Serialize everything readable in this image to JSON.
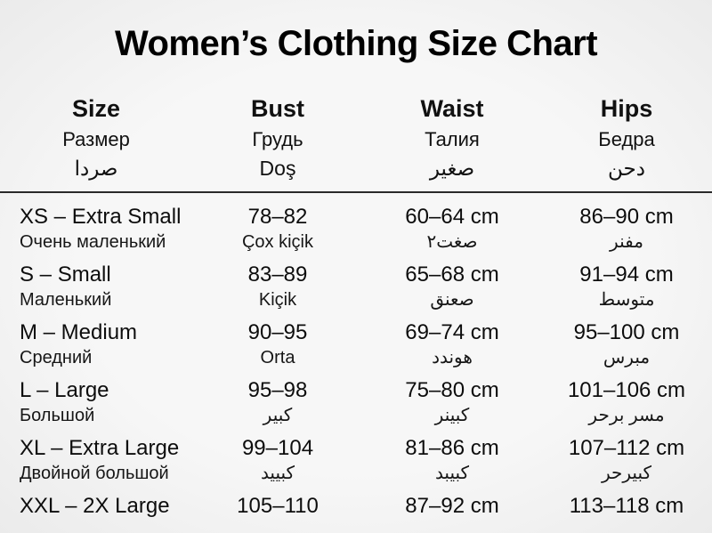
{
  "title": "Women’s Clothing Size Chart",
  "colors": {
    "background": "#f5f5f5",
    "text": "#111111",
    "divider": "#2a2a2a"
  },
  "table": {
    "headers": [
      {
        "en": "Size",
        "ru": "Размер",
        "third": "صردا"
      },
      {
        "en": "Bust",
        "ru": "Грудь",
        "third": "Doş"
      },
      {
        "en": "Waist",
        "ru": "Талия",
        "third": "صغير"
      },
      {
        "en": "Hips",
        "ru": "Бедра",
        "third": "دحن"
      }
    ],
    "rows": [
      {
        "size": "XS – Extra Small",
        "size_sub": "Очень маленький",
        "bust": "78–82",
        "bust_sub": "Çox kiçik",
        "waist": "60–64 cm",
        "waist_sub": "صغت٢",
        "hips": "86–90 cm",
        "hips_sub": "مفنر"
      },
      {
        "size": "S – Small",
        "size_sub": "Маленький",
        "bust": "83–89",
        "bust_sub": "Kiçik",
        "waist": "65–68 cm",
        "waist_sub": "صعنق",
        "hips": "91–94 cm",
        "hips_sub": "متوسط"
      },
      {
        "size": "M – Medium",
        "size_sub": "Средний",
        "bust": "90–95",
        "bust_sub": "Orta",
        "waist": "69–74 cm",
        "waist_sub": "هوندد",
        "hips": "95–100 cm",
        "hips_sub": "مبرس"
      },
      {
        "size": "L – Large",
        "size_sub": "Большой",
        "bust": "95–98",
        "bust_sub": "كبير",
        "waist": "75–80 cm",
        "waist_sub": "كبينر",
        "hips": "101–106 cm",
        "hips_sub": "مسر برحر"
      },
      {
        "size": "XL – Extra Large",
        "size_sub": "Двойной большой",
        "bust": "99–104",
        "bust_sub": "كبييد",
        "waist": "81–86 cm",
        "waist_sub": "كبيبد",
        "hips": "107–112 cm",
        "hips_sub": "كبيرحر"
      },
      {
        "size": "XXL – 2X Large",
        "size_sub": "",
        "bust": "105–110",
        "bust_sub": "",
        "waist": "87–92 cm",
        "waist_sub": "",
        "hips": "113–118 cm",
        "hips_sub": ""
      }
    ]
  },
  "chart_data": {
    "type": "table",
    "title": "Women’s Clothing Size Chart",
    "columns": [
      "Size",
      "Bust",
      "Waist",
      "Hips"
    ],
    "column_subtitles": [
      [
        "Размер",
        "صردا"
      ],
      [
        "Грудь",
        "Doş"
      ],
      [
        "Талия",
        "صغير"
      ],
      [
        "Бедра",
        "دحن"
      ]
    ],
    "rows": [
      [
        "XS – Extra Small",
        "78–82",
        "60–64 cm",
        "86–90 cm"
      ],
      [
        "S – Small",
        "83–89",
        "65–68 cm",
        "91–94 cm"
      ],
      [
        "M – Medium",
        "90–95",
        "69–74 cm",
        "95–100 cm"
      ],
      [
        "L – Large",
        "95–98",
        "75–80 cm",
        "101–106 cm"
      ],
      [
        "XL – Extra Large",
        "99–104",
        "81–86 cm",
        "107–112 cm"
      ],
      [
        "XXL – 2X Large",
        "105–110",
        "87–92 cm",
        "113–118 cm"
      ]
    ],
    "row_translations": [
      [
        "Очень маленький",
        "Çox kiçik",
        "صغت٢",
        "مفنر"
      ],
      [
        "Маленький",
        "Kiçik",
        "صعنق",
        "متوسط"
      ],
      [
        "Средний",
        "Orta",
        "هوندد",
        "مبرس"
      ],
      [
        "Большой",
        "كبير",
        "كبينر",
        "مسر برحر"
      ],
      [
        "Двойной большой",
        "كبييد",
        "كبيبد",
        "كبيرحر"
      ],
      [
        "",
        "",
        "",
        ""
      ]
    ]
  }
}
